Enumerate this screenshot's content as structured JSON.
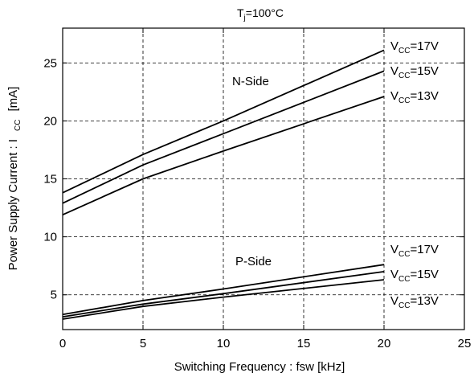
{
  "chart_data": {
    "type": "line",
    "title": {
      "prefix": "T",
      "sub": "j",
      "suffix": "=100°C"
    },
    "xlabel": "Switching Frequency  : fsw [kHz]",
    "ylabel": {
      "main": "Power Supply Current : I",
      "sub": "CC",
      "unit": "[mA]"
    },
    "xlim": [
      0,
      25
    ],
    "ylim": [
      2,
      28
    ],
    "xticks": [
      0,
      5,
      10,
      15,
      20,
      25
    ],
    "yticks": [
      5,
      10,
      15,
      20,
      25
    ],
    "x_tick_labels": [
      "0",
      "5",
      "10",
      "15",
      "20",
      "25"
    ],
    "y_tick_labels": [
      "5",
      "10",
      "15",
      "20",
      "25"
    ],
    "grid": "dashed",
    "series": [
      {
        "name": "N-Side VCC=17V",
        "x": [
          0,
          5,
          10,
          20
        ],
        "y": [
          13.8,
          17.1,
          20.0,
          26.1
        ]
      },
      {
        "name": "N-Side VCC=15V",
        "x": [
          0,
          5,
          10,
          20
        ],
        "y": [
          12.9,
          16.2,
          18.9,
          24.3
        ]
      },
      {
        "name": "N-Side VCC=13V",
        "x": [
          0,
          5,
          10,
          20
        ],
        "y": [
          11.9,
          15.0,
          17.4,
          22.1
        ]
      },
      {
        "name": "P-Side VCC=17V",
        "x": [
          0,
          5,
          10,
          20
        ],
        "y": [
          3.3,
          4.5,
          5.5,
          7.6
        ]
      },
      {
        "name": "P-Side VCC=15V",
        "x": [
          0,
          5,
          10,
          20
        ],
        "y": [
          3.1,
          4.2,
          5.1,
          7.0
        ]
      },
      {
        "name": "P-Side VCC=13V",
        "x": [
          0,
          5,
          10,
          20
        ],
        "y": [
          2.9,
          4.0,
          4.8,
          6.3
        ]
      }
    ],
    "annotations": {
      "n_side": "N-Side",
      "p_side": "P-Side",
      "vcc_17": {
        "prefix": "V",
        "sub": "CC",
        "suffix": "=17V"
      },
      "vcc_15": {
        "prefix": "V",
        "sub": "CC",
        "suffix": "=15V"
      },
      "vcc_13": {
        "prefix": "V",
        "sub": "CC",
        "suffix": "=13V"
      }
    }
  }
}
